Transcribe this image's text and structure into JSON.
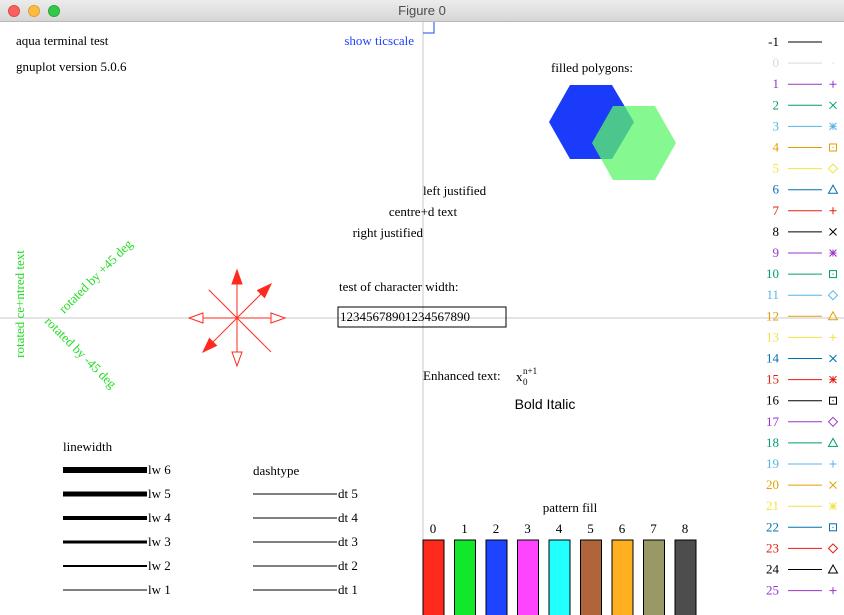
{
  "window": {
    "title": "Figure 0"
  },
  "header": {
    "line1": "aqua  terminal test",
    "line2": "gnuplot version 5.0.6"
  },
  "ticscale_label": "show ticscale",
  "polygons": {
    "title": "filled polygons:",
    "hex1_color": "#1a3cfa",
    "hex2_color": "#5cf56a"
  },
  "justify": {
    "left": "left justified",
    "centre": "centre+d text",
    "right": "right justified"
  },
  "rotated": {
    "vertical": "rotated ce+ntred text",
    "plus45": "rotated by +45 deg",
    "minus45": "rotated by -45 deg",
    "color": "#22dd22"
  },
  "charwidth": {
    "title": "test of character width:",
    "sample": "12345678901234567890"
  },
  "enhanced": {
    "label": "Enhanced text:",
    "base": "x",
    "sub": "0",
    "sup": "n+1",
    "bold_italic": "Bold Italic"
  },
  "linewidth": {
    "title": "linewidth",
    "items": [
      "lw 6",
      "lw 5",
      "lw 4",
      "lw 3",
      "lw 2",
      "lw 1"
    ]
  },
  "dashtype": {
    "title": "dashtype",
    "items": [
      "dt 5",
      "dt 4",
      "dt 3",
      "dt 2",
      "dt 1"
    ]
  },
  "pattern": {
    "title": "pattern fill",
    "labels": [
      "0",
      "1",
      "2",
      "3",
      "4",
      "5",
      "6",
      "7",
      "8"
    ],
    "colors": [
      "#ff2a1e",
      "#12e82a",
      "#1e44ff",
      "#ff44ff",
      "#22ffff",
      "#b0643c",
      "#ffb020",
      "#999966",
      "#4d4d4d"
    ]
  },
  "linetypes": [
    {
      "label": "-1",
      "color": "#000000",
      "symbol": "none"
    },
    {
      "label": "0",
      "color": "#d9d9d9",
      "symbol": "dot-icon"
    },
    {
      "label": "1",
      "color": "#9933cc",
      "symbol": "plus-icon"
    },
    {
      "label": "2",
      "color": "#009e73",
      "symbol": "cross-icon"
    },
    {
      "label": "3",
      "color": "#56b4e9",
      "symbol": "star-icon"
    },
    {
      "label": "4",
      "color": "#e69f00",
      "symbol": "box-icon"
    },
    {
      "label": "5",
      "color": "#f0e442",
      "symbol": "diamond-icon"
    },
    {
      "label": "6",
      "color": "#0072b2",
      "symbol": "triangle-icon"
    },
    {
      "label": "7",
      "color": "#e51e10",
      "symbol": "plus-icon"
    },
    {
      "label": "8",
      "color": "#000000",
      "symbol": "cross-icon"
    },
    {
      "label": "9",
      "color": "#9933cc",
      "symbol": "star-icon"
    },
    {
      "label": "10",
      "color": "#009e73",
      "symbol": "box-icon"
    },
    {
      "label": "11",
      "color": "#56b4e9",
      "symbol": "diamond-icon"
    },
    {
      "label": "12",
      "color": "#e69f00",
      "symbol": "triangle-icon"
    },
    {
      "label": "13",
      "color": "#f0e442",
      "symbol": "plus-icon"
    },
    {
      "label": "14",
      "color": "#0072b2",
      "symbol": "cross-icon"
    },
    {
      "label": "15",
      "color": "#e51e10",
      "symbol": "star-icon"
    },
    {
      "label": "16",
      "color": "#000000",
      "symbol": "box-icon"
    },
    {
      "label": "17",
      "color": "#9933cc",
      "symbol": "diamond-icon"
    },
    {
      "label": "18",
      "color": "#009e73",
      "symbol": "triangle-icon"
    },
    {
      "label": "19",
      "color": "#56b4e9",
      "symbol": "plus-icon"
    },
    {
      "label": "20",
      "color": "#e69f00",
      "symbol": "cross-icon"
    },
    {
      "label": "21",
      "color": "#f0e442",
      "symbol": "star-icon"
    },
    {
      "label": "22",
      "color": "#0072b2",
      "symbol": "box-icon"
    },
    {
      "label": "23",
      "color": "#e51e10",
      "symbol": "diamond-icon"
    },
    {
      "label": "24",
      "color": "#000000",
      "symbol": "triangle-icon"
    },
    {
      "label": "25",
      "color": "#9933cc",
      "symbol": "plus-icon"
    }
  ],
  "colors": {
    "axis": "#c8c8c8",
    "arrow": "#ff2a1e",
    "ticscale": "#1e44ff"
  }
}
